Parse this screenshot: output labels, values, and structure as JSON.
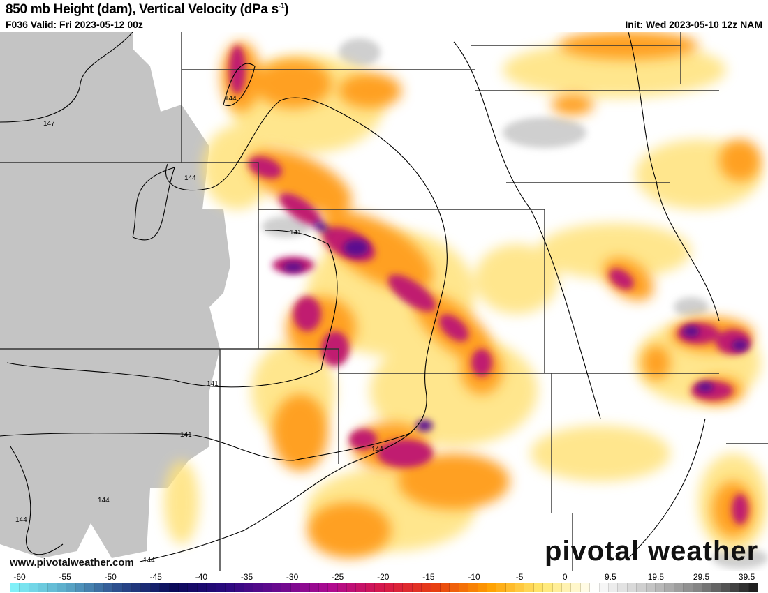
{
  "header": {
    "title": "850 mb Height (dam), Vertical Velocity (dPa s",
    "title_sup": "-1",
    ")": ")",
    "valid": "F036 Valid: Fri 2023-05-12 00z",
    "init": "Init: Wed 2023-05-10 12z NAM"
  },
  "footer": {
    "website": "www.pivotalweather.com",
    "logo": "pivotal weather"
  },
  "contour_labels": [
    "147",
    "144",
    "144",
    "141",
    "141",
    "141",
    "144",
    "144",
    "144",
    "144"
  ],
  "colorbar": {
    "labels": [
      "-60",
      "-55",
      "-50",
      "-45",
      "-40",
      "-35",
      "-30",
      "-25",
      "-20",
      "-15",
      "-10",
      "-5",
      "0",
      "9.5",
      "19.5",
      "29.5",
      "39.5"
    ],
    "stops": [
      "#80f0f8",
      "#5aa8c8",
      "#2a4a8c",
      "#0a0a5a",
      "#2a0a80",
      "#6a0a90",
      "#b00a90",
      "#d81848",
      "#e84010",
      "#ffa000",
      "#ffe870",
      "#ffffff",
      "#c8c8c8",
      "#808080",
      "#202020"
    ]
  },
  "colors": {
    "terrain_mask": "#c4c4c4",
    "borders": "#555555"
  }
}
